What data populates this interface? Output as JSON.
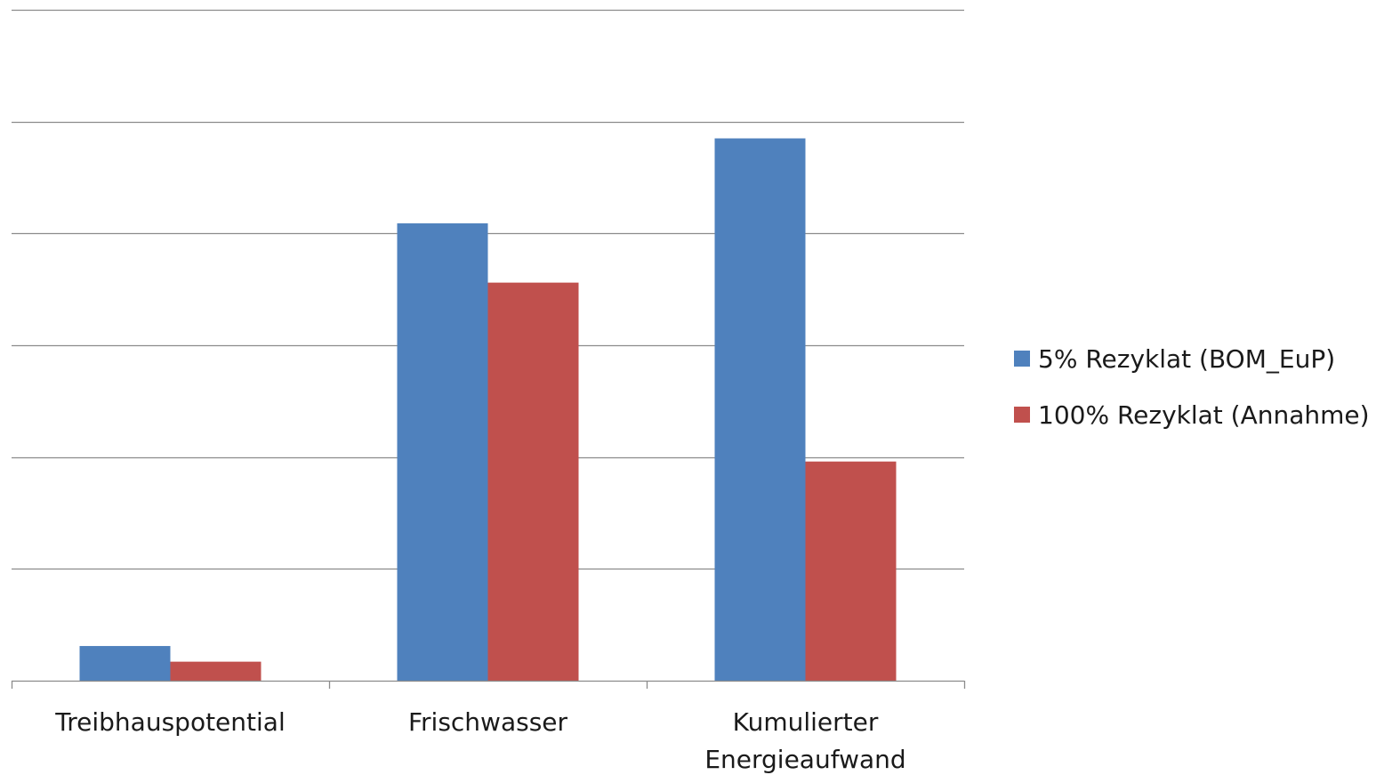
{
  "chart_data": {
    "type": "bar",
    "categories": [
      [
        "Treibhauspotential"
      ],
      [
        "Frischwasser"
      ],
      [
        "Kumulierter",
        "Energieaufwand"
      ]
    ],
    "series": [
      {
        "name": "5% Rezyklat (BOM_EuP)",
        "color": "#4f81bd",
        "values": [
          0.31,
          4.09,
          4.85
        ]
      },
      {
        "name": "100% Rezyklat (Annahme)",
        "color": "#c0504d",
        "values": [
          0.17,
          3.56,
          1.96
        ]
      }
    ],
    "ylim": [
      0,
      6
    ],
    "grid": true,
    "legend_position": "right"
  }
}
